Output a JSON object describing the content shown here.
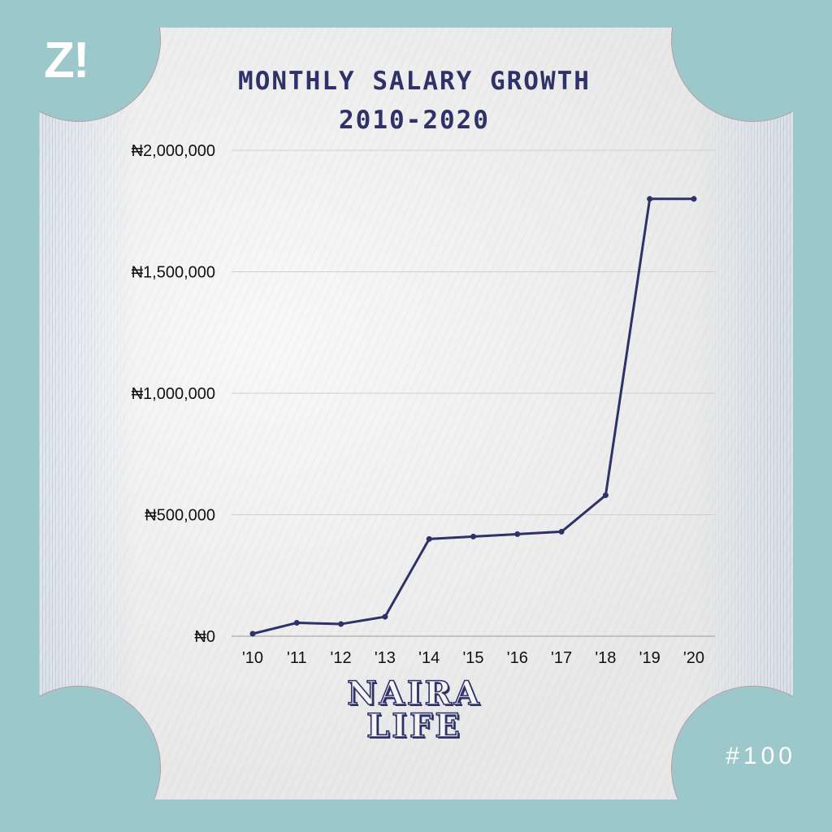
{
  "logo": "Z!",
  "title_lines": [
    "MONTHLY SALARY GROWTH",
    "2010-2020"
  ],
  "brand_lines": [
    "NAIRA",
    "LIFE"
  ],
  "issue": "#100",
  "colors": {
    "background": "#9cc8cc",
    "line": "#2e3268",
    "title": "#2e3268",
    "paper": "#efefef"
  },
  "chart_data": {
    "type": "line",
    "title": "MONTHLY SALARY GROWTH 2010-2020",
    "xlabel": "",
    "ylabel": "",
    "categories": [
      "'10",
      "'11",
      "'12",
      "'13",
      "'14",
      "'15",
      "'16",
      "'17",
      "'18",
      "'19",
      "'20"
    ],
    "series": [
      {
        "values": [
          10000,
          55000,
          50000,
          80000,
          400000,
          410000,
          420000,
          430000,
          580000,
          1800000,
          1800000
        ]
      }
    ],
    "y_ticks": [
      0,
      500000,
      1000000,
      1500000,
      2000000
    ],
    "y_tick_labels": [
      "₦0",
      "₦500,000",
      "₦1,000,000",
      "₦1,500,000",
      "₦2,000,000"
    ],
    "ylim": [
      0,
      2000000
    ],
    "grid": true,
    "legend": "none"
  }
}
